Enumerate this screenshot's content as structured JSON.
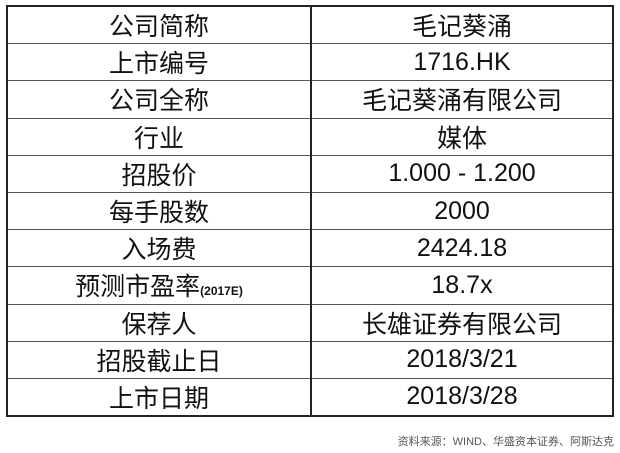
{
  "rows": [
    {
      "label": "公司简称",
      "value": "毛记葵涌"
    },
    {
      "label": "上市编号",
      "value": "1716.HK"
    },
    {
      "label": "公司全称",
      "value": "毛记葵涌有限公司"
    },
    {
      "label": "行业",
      "value": "媒体"
    },
    {
      "label": "招股价",
      "value": "1.000 - 1.200"
    },
    {
      "label": "每手股数",
      "value": "2000"
    },
    {
      "label": "入场费",
      "value": "2424.18"
    },
    {
      "label": "预测市盈率",
      "label_suffix": "(2017E)",
      "value": "18.7x"
    },
    {
      "label": "保荐人",
      "value": "长雄证券有限公司"
    },
    {
      "label": "招股截止日",
      "value": "2018/3/21"
    },
    {
      "label": "上市日期",
      "value": "2018/3/28"
    }
  ],
  "source": "资料来源：WIND、华盛资本证券、阿斯达克"
}
